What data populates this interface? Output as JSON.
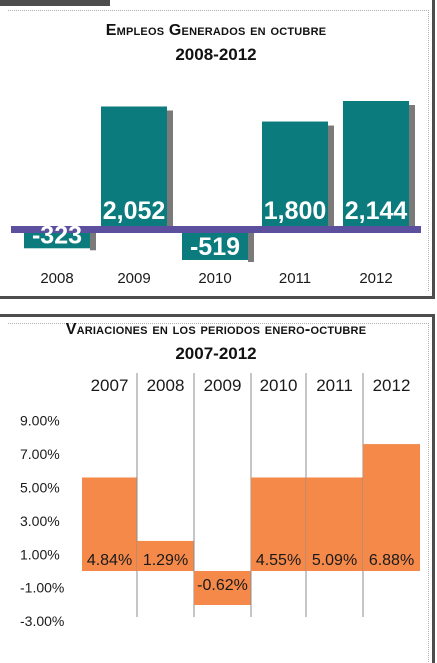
{
  "chart_data": [
    {
      "type": "bar",
      "title": "Empleos Generados en octubre",
      "subtitle": "2008-2012",
      "categories": [
        "2008",
        "2009",
        "2010",
        "2011",
        "2012"
      ],
      "values": [
        -323,
        2052,
        -519,
        1800,
        2144
      ],
      "value_labels": [
        "-323",
        "2,052",
        "-519",
        "1,800",
        "2,144"
      ],
      "ylim": [
        -600,
        2400
      ],
      "grid": false,
      "colors": {
        "bar": "#0c7b7e",
        "shadow": "#7a7a7a",
        "baseline": "#5b4f9e"
      }
    },
    {
      "type": "bar",
      "title": "Variaciones en los periodos enero-octubre",
      "subtitle": "2007-2012",
      "categories": [
        "2007",
        "2008",
        "2009",
        "2010",
        "2011",
        "2012"
      ],
      "values": [
        4.84,
        1.29,
        -0.62,
        4.55,
        5.09,
        6.88
      ],
      "value_labels": [
        "4.84%",
        "1.29%",
        "-0.62%",
        "4.55%",
        "5.09%",
        "6.88%"
      ],
      "y_ticks": [
        "9.00%",
        "7.00%",
        "5.00%",
        "3.00%",
        "1.00%",
        "-1.00%",
        "-3.00%"
      ],
      "ylim": [
        -3,
        9
      ],
      "grid": false,
      "colors": {
        "bar": "#f5894a",
        "divider": "#8c8c8c"
      }
    }
  ]
}
